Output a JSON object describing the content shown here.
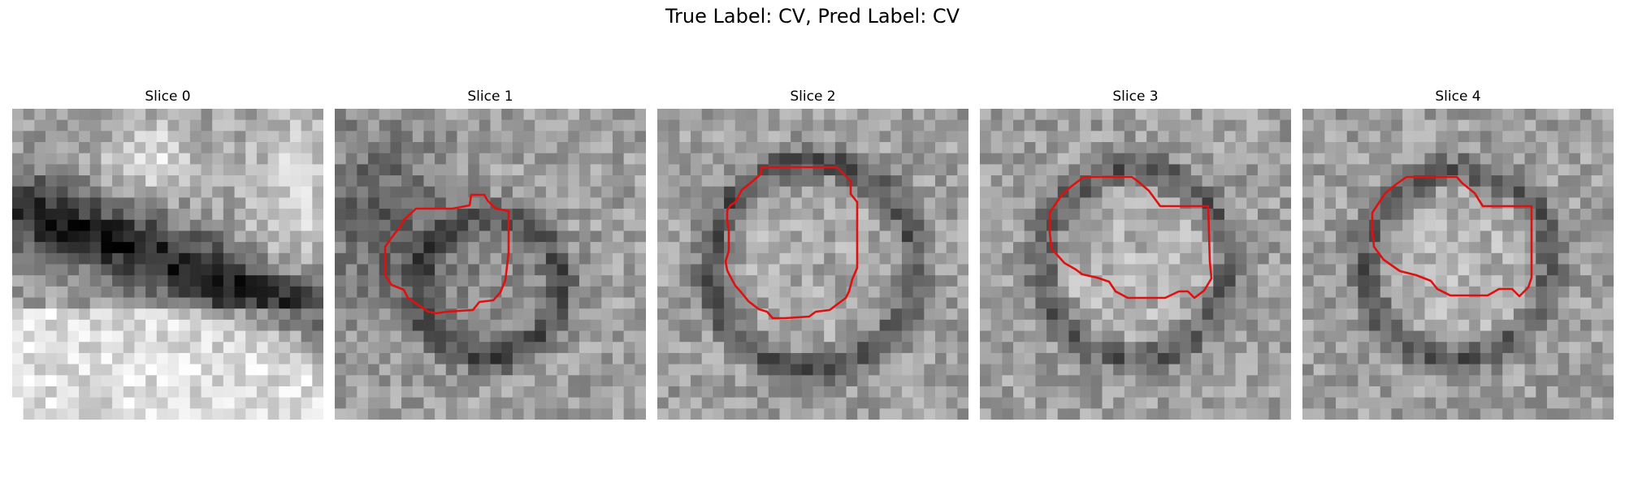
{
  "figure": {
    "title": "True Label: CV, Pred Label: CV"
  },
  "panels": [
    {
      "title": "Slice 0"
    },
    {
      "title": "Slice 1"
    },
    {
      "title": "Slice 2"
    },
    {
      "title": "Slice 3"
    },
    {
      "title": "Slice 4"
    }
  ],
  "contour_color": "#e01010"
}
